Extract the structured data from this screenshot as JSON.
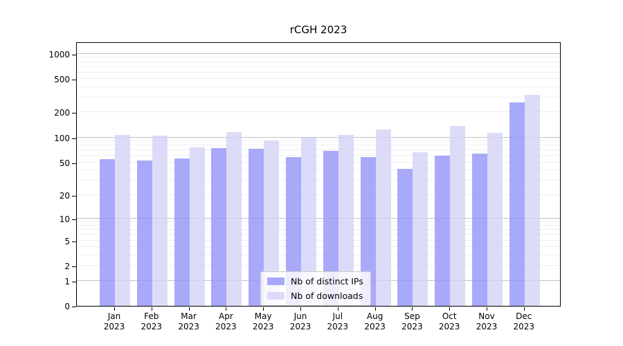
{
  "title": "rCGH 2023",
  "chart_data": {
    "type": "bar",
    "title": "rCGH 2023",
    "categories": [
      "Jan",
      "Feb",
      "Mar",
      "Apr",
      "May",
      "Jun",
      "Jul",
      "Aug",
      "Sep",
      "Oct",
      "Nov",
      "Dec"
    ],
    "year_label": "2023",
    "series": [
      {
        "name": "Nb of distinct IPs",
        "color": "rgba(148,148,249,0.8)",
        "values": [
          55,
          53,
          56,
          74,
          73,
          58,
          69,
          58,
          42,
          60,
          64,
          263
        ]
      },
      {
        "name": "Nb of downloads",
        "color": "rgba(211,211,248,0.8)",
        "values": [
          107,
          105,
          76,
          117,
          92,
          100,
          107,
          125,
          66,
          137,
          113,
          324
        ]
      }
    ],
    "yscale": "log1p",
    "ylim": [
      0,
      1400
    ],
    "yticks": [
      0,
      1,
      2,
      5,
      10,
      20,
      50,
      100,
      200,
      500,
      1000
    ],
    "grid": {
      "orientation": "horizontal",
      "minor_color": "#efefef",
      "major_color": "#c2c2c2",
      "major_at": [
        1,
        10,
        100,
        1000
      ]
    },
    "legend": {
      "position": "inside-bottom-center",
      "border_color": "#c9c9c9",
      "background": "rgba(255,255,255,0.8)"
    },
    "axis_color": "#000000",
    "background": "#ffffff"
  }
}
